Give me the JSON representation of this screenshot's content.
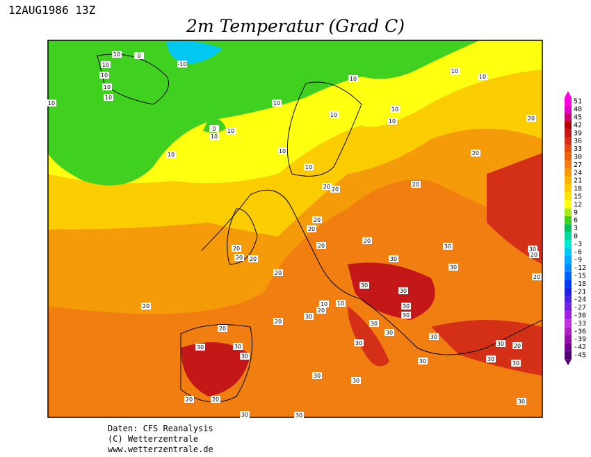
{
  "header": {
    "timestamp": "12AUG1986 13Z",
    "title": "2m Temperatur (Grad C)"
  },
  "colorbar": {
    "levels": [
      51,
      48,
      45,
      42,
      39,
      36,
      33,
      30,
      27,
      24,
      21,
      18,
      15,
      12,
      9,
      6,
      3,
      0,
      -3,
      -6,
      -9,
      -12,
      -15,
      -18,
      -21,
      -24,
      -27,
      -30,
      -33,
      -36,
      -39,
      -42,
      -45
    ],
    "colors": [
      "#ff00e0",
      "#e000c8",
      "#c8006e",
      "#b00000",
      "#c41818",
      "#d43018",
      "#e04c10",
      "#e86410",
      "#f07e10",
      "#f59a08",
      "#f8b400",
      "#fbcc00",
      "#fde400",
      "#ffff10",
      "#a8e820",
      "#40d020",
      "#00c060",
      "#00d8a0",
      "#00e8d8",
      "#00c8f0",
      "#00a8ff",
      "#0088ff",
      "#0060ff",
      "#0038f0",
      "#2020e0",
      "#5020e0",
      "#7820e0",
      "#a020e0",
      "#c030e0",
      "#b020c0",
      "#9010a8",
      "#700090",
      "#500070"
    ]
  },
  "contour_labels": [
    10,
    0,
    10,
    10,
    10,
    10,
    10,
    -10,
    10,
    10,
    10,
    10,
    10,
    10,
    10,
    0,
    10,
    10,
    20,
    10,
    20,
    10,
    10,
    20,
    20,
    20,
    20,
    20,
    20,
    20,
    20,
    20,
    20,
    30,
    30,
    30,
    30,
    20,
    20,
    30,
    20,
    20,
    30,
    10,
    10,
    30,
    20,
    30,
    20,
    30,
    20,
    30,
    30,
    30,
    30,
    30,
    30,
    30,
    30,
    20,
    30,
    30,
    30,
    30,
    30,
    20,
    20,
    30,
    30,
    30
  ],
  "footer": [
    "Daten: CFS Reanalysis",
    "(C) Wetterzentrale",
    "www.wetterzentrale.de"
  ]
}
